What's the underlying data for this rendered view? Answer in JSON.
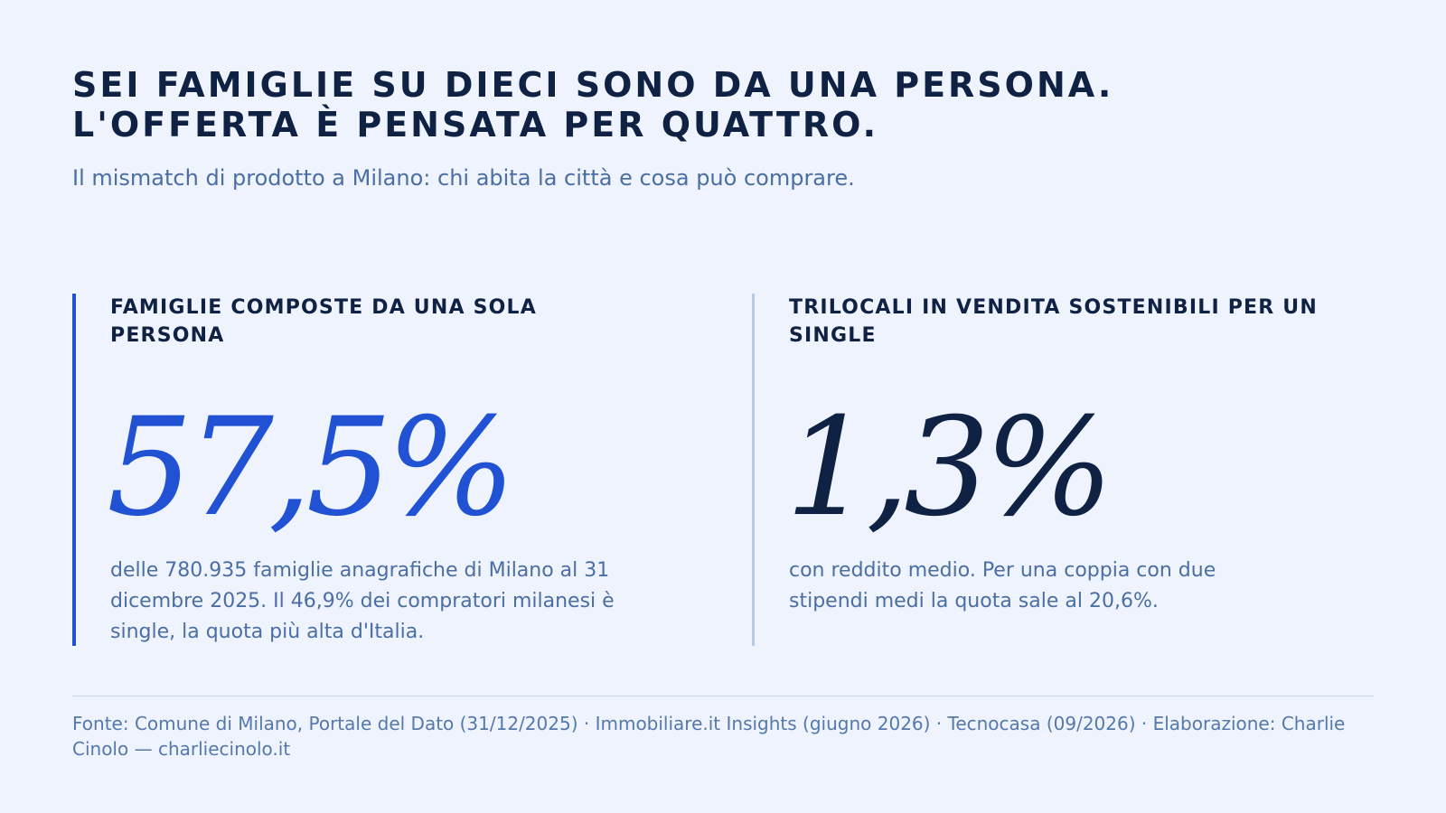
{
  "headline": {
    "line1": "SEI FAMIGLIE SU DIECI SONO DA UNA PERSONA.",
    "line2": "L'OFFERTA È PENSATA PER QUATTRO."
  },
  "subtitle": "Il mismatch di prodotto a Milano: chi abita la città e cosa può comprare.",
  "stats": [
    {
      "label": "FAMIGLIE COMPOSTE DA UNA SOLA PERSONA",
      "value": "57,5%",
      "description": "delle 780.935 famiglie anagrafiche di Milano al 31 dicembre 2025. Il 46,9% dei compratori milanesi è single, la quota più alta d'Italia.",
      "accent": "#2152d4"
    },
    {
      "label": "TRILOCALI IN VENDITA SOSTENIBILI PER UN SINGLE",
      "value": "1,3%",
      "description": "con reddito medio. Per una coppia con due stipendi medi la quota sale al 20,6%.",
      "accent": "#0f2244"
    }
  ],
  "source": "Fonte: Comune di Milano, Portale del Dato (31/12/2025) · Immobiliare.it Insights (giugno 2026) · Tecnocasa (09/2026) · Elaborazione: Charlie Cinolo — charliecinolo.it",
  "colors": {
    "background": "#eef3fd",
    "primary": "#0f2244",
    "accent_blue": "#2152d4",
    "muted_text": "#4b6ea3",
    "rule": "#b7cbe4"
  }
}
